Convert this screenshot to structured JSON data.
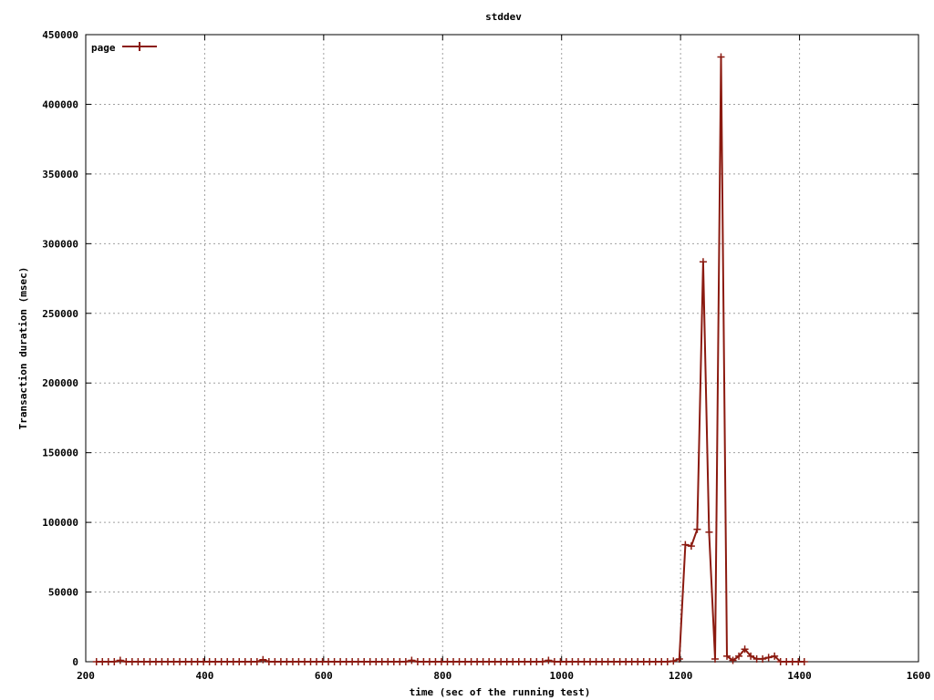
{
  "chart_data": {
    "type": "line",
    "title": "stddev",
    "xlabel": "time (sec of the running test)",
    "ylabel": "Transaction duration (msec)",
    "xlim": [
      200,
      1600
    ],
    "ylim": [
      0,
      450000
    ],
    "x_ticks": [
      200,
      400,
      600,
      800,
      1000,
      1200,
      1400,
      1600
    ],
    "y_ticks": [
      0,
      50000,
      100000,
      150000,
      200000,
      250000,
      300000,
      350000,
      400000,
      450000
    ],
    "grid": true,
    "legend_position": "top-left",
    "series": [
      {
        "name": "page",
        "color": "#8b1a10",
        "marker": "plus",
        "x": [
          218,
          228,
          238,
          248,
          258,
          268,
          278,
          288,
          298,
          308,
          318,
          328,
          338,
          348,
          358,
          368,
          378,
          388,
          398,
          408,
          418,
          428,
          438,
          448,
          458,
          468,
          478,
          488,
          498,
          508,
          518,
          528,
          538,
          548,
          558,
          568,
          578,
          588,
          598,
          608,
          618,
          628,
          638,
          648,
          658,
          668,
          678,
          688,
          698,
          708,
          718,
          728,
          738,
          748,
          758,
          768,
          778,
          788,
          798,
          808,
          818,
          828,
          838,
          848,
          858,
          868,
          878,
          888,
          898,
          908,
          918,
          928,
          938,
          948,
          958,
          968,
          978,
          988,
          998,
          1008,
          1018,
          1028,
          1038,
          1048,
          1058,
          1068,
          1078,
          1088,
          1098,
          1108,
          1118,
          1128,
          1138,
          1148,
          1158,
          1168,
          1178,
          1188,
          1198,
          1208,
          1218,
          1228,
          1238,
          1248,
          1258,
          1268,
          1278,
          1288,
          1298,
          1308,
          1318,
          1328,
          1338,
          1348,
          1358,
          1368,
          1378,
          1388,
          1398,
          1408
        ],
        "y": [
          0,
          0,
          0,
          0,
          1000,
          0,
          0,
          0,
          0,
          0,
          0,
          0,
          0,
          0,
          0,
          0,
          0,
          0,
          0,
          0,
          0,
          0,
          0,
          0,
          0,
          0,
          0,
          0,
          1500,
          0,
          0,
          0,
          0,
          0,
          0,
          0,
          0,
          0,
          0,
          0,
          0,
          0,
          0,
          0,
          0,
          0,
          0,
          0,
          0,
          0,
          0,
          0,
          0,
          1000,
          0,
          0,
          0,
          0,
          0,
          0,
          0,
          0,
          0,
          0,
          0,
          0,
          0,
          0,
          0,
          0,
          0,
          0,
          0,
          0,
          0,
          0,
          1000,
          0,
          0,
          0,
          0,
          0,
          0,
          0,
          0,
          0,
          0,
          0,
          0,
          0,
          0,
          0,
          0,
          0,
          0,
          0,
          0,
          500,
          2000,
          84000,
          83000,
          95000,
          287000,
          93000,
          2000,
          434000,
          4000,
          1000,
          4000,
          9000,
          4000,
          2000,
          2000,
          3000,
          4000,
          0,
          0,
          0,
          0,
          0
        ]
      }
    ]
  }
}
